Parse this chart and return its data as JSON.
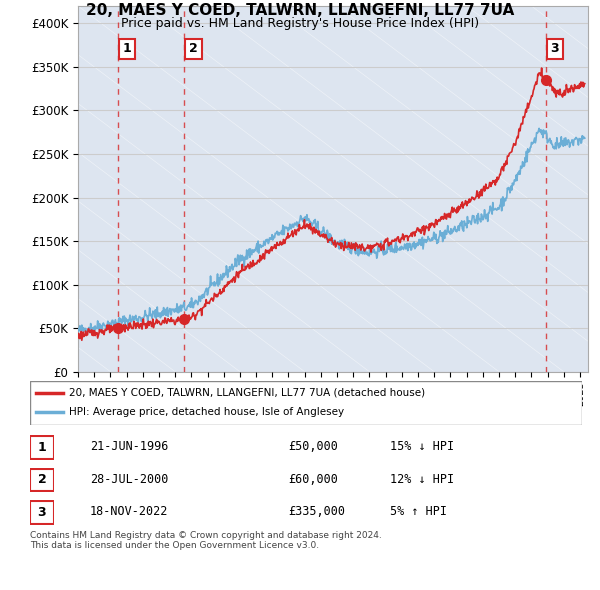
{
  "title": "20, MAES Y COED, TALWRN, LLANGEFNI, LL77 7UA",
  "subtitle": "Price paid vs. HM Land Registry's House Price Index (HPI)",
  "ylabel_ticks": [
    "£0",
    "£50K",
    "£100K",
    "£150K",
    "£200K",
    "£250K",
    "£300K",
    "£350K",
    "£400K"
  ],
  "ytick_values": [
    0,
    50000,
    100000,
    150000,
    200000,
    250000,
    300000,
    350000,
    400000
  ],
  "xlim_start": 1994.0,
  "xlim_end": 2025.5,
  "ylim": [
    0,
    420000
  ],
  "sale_dates": [
    1996.47,
    2000.56,
    2022.88
  ],
  "sale_prices": [
    50000,
    60000,
    335000
  ],
  "sale_labels": [
    "1",
    "2",
    "3"
  ],
  "legend_label_red": "20, MAES Y COED, TALWRN, LLANGEFNI, LL77 7UA (detached house)",
  "legend_label_blue": "HPI: Average price, detached house, Isle of Anglesey",
  "table_rows": [
    [
      "1",
      "21-JUN-1996",
      "£50,000",
      "15% ↓ HPI"
    ],
    [
      "2",
      "28-JUL-2000",
      "£60,000",
      "12% ↓ HPI"
    ],
    [
      "3",
      "18-NOV-2022",
      "£335,000",
      "5% ↑ HPI"
    ]
  ],
  "footnote": "Contains HM Land Registry data © Crown copyright and database right 2024.\nThis data is licensed under the Open Government Licence v3.0.",
  "hpi_color": "#6baed6",
  "price_color": "#d62728",
  "dashed_line_color": "#d62728",
  "bg_hatch_color": "#d0d8e8",
  "grid_color": "#cccccc"
}
